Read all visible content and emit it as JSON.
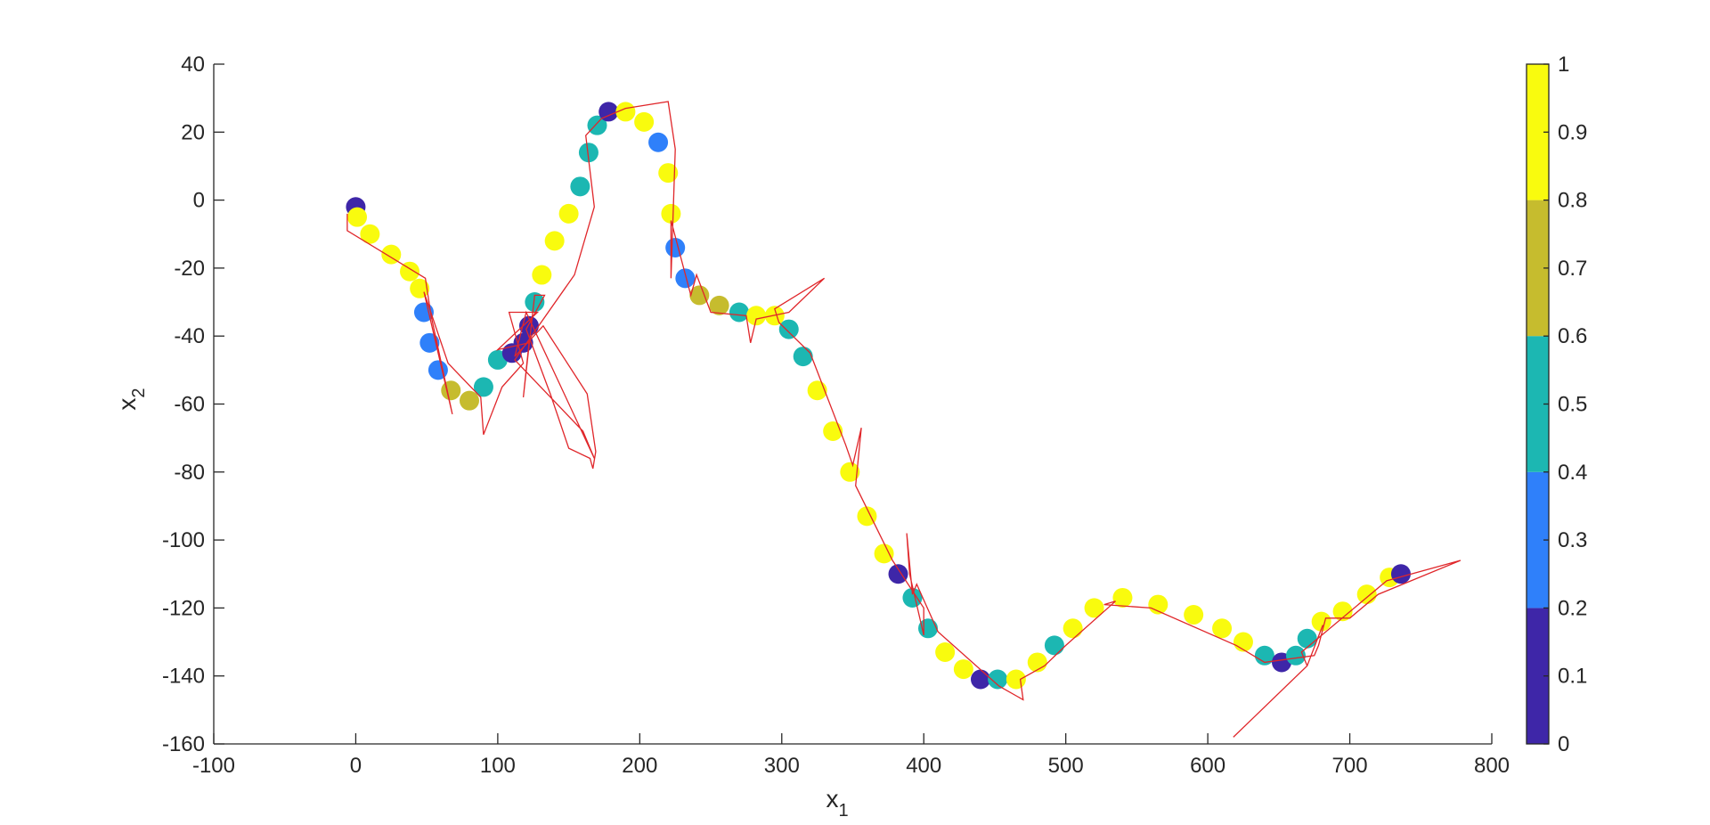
{
  "chart_data": {
    "type": "scatter",
    "xlabel": "x",
    "xlabel_sub": "1",
    "ylabel": "x",
    "ylabel_sub": "2",
    "xlim": [
      -100,
      800
    ],
    "ylim": [
      -160,
      40
    ],
    "xticks": [
      "-100",
      "0",
      "100",
      "200",
      "300",
      "400",
      "500",
      "600",
      "700",
      "800"
    ],
    "yticks": [
      "40",
      "20",
      "0",
      "-20",
      "-40",
      "-60",
      "-80",
      "-100",
      "-120",
      "-140",
      "-160"
    ],
    "colorbar": {
      "range": [
        0,
        1
      ],
      "ticks": [
        "1",
        "0.9",
        "0.8",
        "0.7",
        "0.6",
        "0.5",
        "0.4",
        "0.3",
        "0.2",
        "0.1",
        "0"
      ],
      "bands": [
        {
          "from": 0.0,
          "to": 0.2,
          "color": "#3e26a8"
        },
        {
          "from": 0.2,
          "to": 0.4,
          "color": "#2f80fa"
        },
        {
          "from": 0.4,
          "to": 0.6,
          "color": "#1cb7b2"
        },
        {
          "from": 0.6,
          "to": 0.8,
          "color": "#c6bc2e"
        },
        {
          "from": 0.8,
          "to": 1.0,
          "color": "#f9fb0e"
        }
      ]
    },
    "series": [
      {
        "type": "colored-markers",
        "points": [
          [
            0,
            -2,
            0.1
          ],
          [
            1,
            -5,
            0.9
          ],
          [
            10,
            -10,
            0.9
          ],
          [
            25,
            -16,
            0.9
          ],
          [
            38,
            -21,
            0.9
          ],
          [
            45,
            -26,
            0.9
          ],
          [
            48,
            -33,
            0.3
          ],
          [
            52,
            -42,
            0.3
          ],
          [
            58,
            -50,
            0.3
          ],
          [
            67,
            -56,
            0.7
          ],
          [
            80,
            -59,
            0.7
          ],
          [
            90,
            -55,
            0.5
          ],
          [
            100,
            -47,
            0.5
          ],
          [
            110,
            -45,
            0.1
          ],
          [
            118,
            -42,
            0.1
          ],
          [
            122,
            -37,
            0.1
          ],
          [
            126,
            -30,
            0.5
          ],
          [
            131,
            -22,
            0.9
          ],
          [
            140,
            -12,
            0.9
          ],
          [
            150,
            -4,
            0.9
          ],
          [
            158,
            4,
            0.5
          ],
          [
            164,
            14,
            0.5
          ],
          [
            170,
            22,
            0.5
          ],
          [
            178,
            26,
            0.1
          ],
          [
            190,
            26,
            0.9
          ],
          [
            203,
            23,
            0.9
          ],
          [
            213,
            17,
            0.3
          ],
          [
            220,
            8,
            0.9
          ],
          [
            222,
            -4,
            0.9
          ],
          [
            225,
            -14,
            0.3
          ],
          [
            232,
            -23,
            0.3
          ],
          [
            242,
            -28,
            0.7
          ],
          [
            256,
            -31,
            0.7
          ],
          [
            270,
            -33,
            0.5
          ],
          [
            282,
            -34,
            0.9
          ],
          [
            295,
            -34,
            0.9
          ],
          [
            305,
            -38,
            0.5
          ],
          [
            315,
            -46,
            0.5
          ],
          [
            325,
            -56,
            0.9
          ],
          [
            336,
            -68,
            0.9
          ],
          [
            348,
            -80,
            0.9
          ],
          [
            360,
            -93,
            0.9
          ],
          [
            372,
            -104,
            0.9
          ],
          [
            382,
            -110,
            0.1
          ],
          [
            392,
            -117,
            0.5
          ],
          [
            403,
            -126,
            0.5
          ],
          [
            415,
            -133,
            0.9
          ],
          [
            428,
            -138,
            0.9
          ],
          [
            440,
            -141,
            0.1
          ],
          [
            452,
            -141,
            0.5
          ],
          [
            465,
            -141,
            0.9
          ],
          [
            480,
            -136,
            0.9
          ],
          [
            492,
            -131,
            0.5
          ],
          [
            505,
            -126,
            0.9
          ],
          [
            520,
            -120,
            0.9
          ],
          [
            540,
            -117,
            0.9
          ],
          [
            565,
            -119,
            0.9
          ],
          [
            590,
            -122,
            0.9
          ],
          [
            610,
            -126,
            0.9
          ],
          [
            625,
            -130,
            0.9
          ],
          [
            640,
            -134,
            0.5
          ],
          [
            652,
            -136,
            0.1
          ],
          [
            662,
            -134,
            0.5
          ],
          [
            670,
            -129,
            0.5
          ],
          [
            680,
            -124,
            0.9
          ],
          [
            695,
            -121,
            0.9
          ],
          [
            712,
            -116,
            0.9
          ],
          [
            728,
            -111,
            0.9
          ],
          [
            736,
            -110,
            0.1
          ]
        ]
      },
      {
        "type": "line",
        "color": "#e0262a",
        "points": [
          [
            -6,
            -4
          ],
          [
            -6,
            -9
          ],
          [
            49,
            -23
          ],
          [
            53,
            -34
          ],
          [
            68,
            -63
          ],
          [
            48,
            -27
          ],
          [
            65,
            -48
          ],
          [
            88,
            -58
          ],
          [
            90,
            -69
          ],
          [
            103,
            -55
          ],
          [
            118,
            -48
          ],
          [
            108,
            -33
          ],
          [
            128,
            -33
          ],
          [
            100,
            -44
          ],
          [
            122,
            -42
          ],
          [
            118,
            -58
          ],
          [
            126,
            -28
          ],
          [
            133,
            -28
          ],
          [
            120,
            -38
          ],
          [
            137,
            -57
          ],
          [
            150,
            -73
          ],
          [
            165,
            -76
          ],
          [
            167,
            -79
          ],
          [
            169,
            -74
          ],
          [
            163,
            -57
          ],
          [
            132,
            -37
          ],
          [
            112,
            -46
          ],
          [
            120,
            -33
          ],
          [
            168,
            -76
          ],
          [
            160,
            -68
          ],
          [
            112,
            -47
          ],
          [
            154,
            -22
          ],
          [
            168,
            -2
          ],
          [
            162,
            19
          ],
          [
            173,
            24
          ],
          [
            190,
            27
          ],
          [
            220,
            29
          ],
          [
            225,
            15
          ],
          [
            222,
            -23
          ],
          [
            222,
            -6
          ],
          [
            236,
            -28
          ],
          [
            240,
            -22
          ],
          [
            250,
            -33
          ],
          [
            275,
            -34
          ],
          [
            278,
            -42
          ],
          [
            282,
            -35
          ],
          [
            305,
            -33
          ],
          [
            330,
            -23
          ],
          [
            295,
            -32
          ],
          [
            298,
            -36
          ],
          [
            320,
            -45
          ],
          [
            345,
            -72
          ],
          [
            350,
            -78
          ],
          [
            356,
            -67
          ],
          [
            352,
            -84
          ],
          [
            378,
            -106
          ],
          [
            400,
            -120
          ],
          [
            400,
            -128
          ],
          [
            390,
            -110
          ],
          [
            388,
            -98
          ],
          [
            392,
            -116
          ],
          [
            395,
            -113
          ],
          [
            410,
            -127
          ],
          [
            453,
            -143
          ],
          [
            470,
            -147
          ],
          [
            468,
            -141
          ],
          [
            485,
            -137
          ],
          [
            500,
            -131
          ],
          [
            535,
            -118
          ],
          [
            527,
            -119
          ],
          [
            560,
            -120
          ],
          [
            620,
            -131
          ],
          [
            640,
            -136
          ],
          [
            675,
            -134
          ],
          [
            678,
            -131
          ],
          [
            683,
            -123
          ],
          [
            700,
            -123
          ],
          [
            720,
            -116
          ],
          [
            778,
            -106
          ],
          [
            726,
            -112
          ],
          [
            666,
            -133
          ],
          [
            670,
            -137
          ],
          [
            618,
            -158
          ],
          [
            670,
            -137
          ],
          [
            681,
            -125
          ]
        ]
      }
    ]
  }
}
